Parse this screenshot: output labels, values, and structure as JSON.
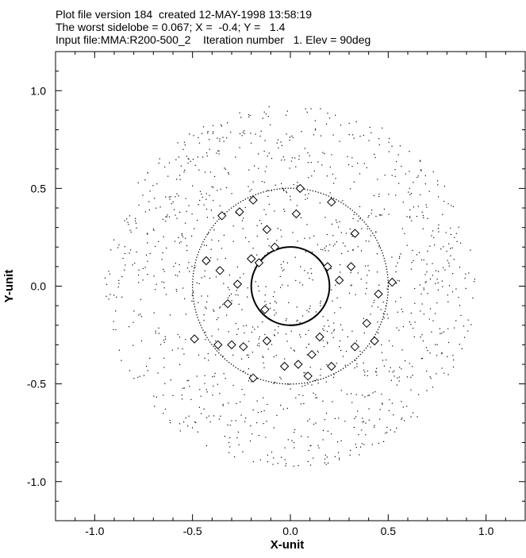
{
  "header": {
    "line1": "Plot file version 184  created 12-MAY-1998 13:58:19",
    "line2": "The worst sidelobe = 0.067; X =  -0.4; Y =   1.4",
    "line3": "Input file:MMA:R200-500_2    Iteration number   1. Elev = 90deg"
  },
  "chart_data": {
    "type": "scatter",
    "title": "",
    "xlabel": "X-unit",
    "ylabel": "Y-unit",
    "xlim": [
      -1.2,
      1.2
    ],
    "ylim": [
      -1.2,
      1.2
    ],
    "xticks": [
      -1.0,
      -0.5,
      0.0,
      0.5,
      1.0
    ],
    "yticks": [
      -1.0,
      -0.5,
      0.0,
      0.5,
      1.0
    ],
    "x_tick_labels": [
      "-1.0",
      "-0.5",
      "0.0",
      "0.5",
      "1.0"
    ],
    "y_tick_labels": [
      "-1.0",
      "-0.5",
      "0.0",
      "0.5",
      "1.0"
    ],
    "grid": false,
    "colors": {
      "ink": "#000000",
      "background": "#ffffff"
    },
    "circles": [
      {
        "name": "",
        "center": [
          0.0,
          0.0
        ],
        "radius": 0.2,
        "style": "solid"
      },
      {
        "name": "",
        "center": [
          0.0,
          0.0
        ],
        "radius": 0.5,
        "style": "dotted"
      }
    ],
    "series": [
      {
        "marker": "diamond",
        "x": [
          0.05,
          0.21,
          -0.19,
          -0.12,
          -0.26,
          0.03,
          0.33,
          -0.35,
          -0.08,
          0.19,
          -0.43,
          -0.2,
          0.31,
          -0.27,
          -0.36,
          0.25,
          0.52,
          -0.32,
          -0.13,
          0.45,
          -0.3,
          -0.12,
          0.39,
          -0.49,
          -0.37,
          -0.19,
          -0.03,
          0.11,
          0.43,
          -0.24,
          0.33,
          0.15,
          0.09,
          0.04,
          0.21,
          -0.16
        ],
        "y": [
          0.5,
          0.43,
          0.44,
          0.29,
          0.38,
          0.37,
          0.27,
          0.36,
          0.2,
          0.1,
          0.13,
          0.14,
          0.1,
          0.01,
          0.08,
          0.03,
          0.02,
          -0.09,
          -0.12,
          -0.04,
          -0.3,
          -0.28,
          -0.19,
          -0.27,
          -0.3,
          -0.47,
          -0.41,
          -0.35,
          -0.28,
          -0.31,
          -0.31,
          -0.26,
          -0.46,
          -0.4,
          -0.41,
          0.12
        ]
      }
    ],
    "background_dots": {
      "count": 1300,
      "extent_radius": 0.95,
      "size": "single-pixel"
    }
  }
}
